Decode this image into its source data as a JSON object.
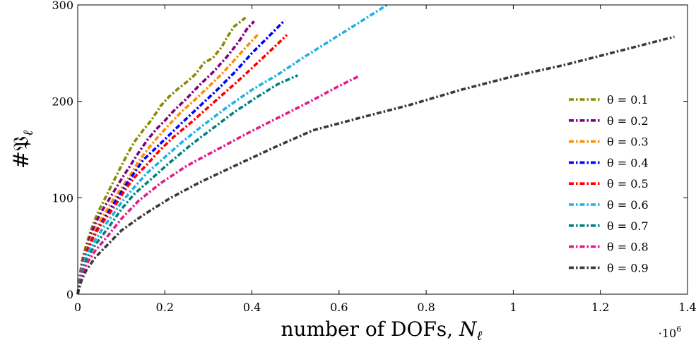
{
  "chart_data": {
    "type": "line",
    "xlabel": "number of DOFs, N_ℓ",
    "ylabel": "#𝔓_ℓ",
    "x_scale_label": "·10^6",
    "xlim": [
      0,
      1.4
    ],
    "ylim": [
      0,
      300
    ],
    "x_ticks": [
      "0",
      "0.2",
      "0.4",
      "0.6",
      "0.8",
      "1",
      "1.2",
      "1.4"
    ],
    "y_ticks": [
      "0",
      "100",
      "200",
      "300"
    ],
    "x_tick_values": [
      0,
      0.2,
      0.4,
      0.6,
      0.8,
      1.0,
      1.2,
      1.4
    ],
    "y_tick_values": [
      0,
      100,
      200,
      300
    ],
    "legend_position": "right",
    "grid": false,
    "series": [
      {
        "name": "θ = 0.1",
        "color": "#8a8a00",
        "x": [
          0,
          0.005,
          0.01,
          0.02,
          0.03,
          0.04,
          0.05,
          0.06,
          0.07,
          0.08,
          0.09,
          0.1,
          0.115,
          0.13,
          0.15,
          0.17,
          0.19,
          0.21,
          0.23,
          0.25,
          0.27,
          0.29,
          0.31,
          0.33,
          0.345,
          0.36,
          0.375,
          0.385
        ],
        "y": [
          0,
          20,
          35,
          52,
          66,
          78,
          88,
          97,
          106,
          115,
          124,
          133,
          146,
          158,
          170,
          181,
          195,
          205,
          213,
          220,
          228,
          240,
          245,
          256,
          268,
          278,
          283,
          287
        ]
      },
      {
        "name": "θ = 0.2",
        "color": "#800080",
        "x": [
          0,
          0.005,
          0.01,
          0.02,
          0.03,
          0.04,
          0.055,
          0.07,
          0.085,
          0.1,
          0.12,
          0.14,
          0.16,
          0.18,
          0.2,
          0.22,
          0.25,
          0.28,
          0.31,
          0.34,
          0.37,
          0.39,
          0.405
        ],
        "y": [
          0,
          18,
          32,
          48,
          62,
          73,
          86,
          97,
          108,
          119,
          133,
          147,
          160,
          171,
          180,
          190,
          203,
          217,
          230,
          245,
          262,
          276,
          283
        ]
      },
      {
        "name": "θ = 0.3",
        "color": "#ff8c00",
        "x": [
          0,
          0.005,
          0.01,
          0.02,
          0.035,
          0.05,
          0.065,
          0.08,
          0.1,
          0.12,
          0.14,
          0.16,
          0.18,
          0.21,
          0.24,
          0.27,
          0.3,
          0.33,
          0.36,
          0.39,
          0.415
        ],
        "y": [
          0,
          17,
          30,
          46,
          62,
          75,
          86,
          97,
          110,
          123,
          138,
          150,
          161,
          176,
          190,
          202,
          215,
          228,
          243,
          258,
          270
        ]
      },
      {
        "name": "θ = 0.4",
        "color": "#0000ff",
        "x": [
          0,
          0.005,
          0.01,
          0.02,
          0.035,
          0.05,
          0.07,
          0.09,
          0.11,
          0.13,
          0.15,
          0.18,
          0.21,
          0.24,
          0.28,
          0.32,
          0.36,
          0.4,
          0.44,
          0.475
        ],
        "y": [
          0,
          16,
          29,
          44,
          59,
          71,
          85,
          99,
          113,
          126,
          139,
          152,
          165,
          178,
          195,
          212,
          230,
          250,
          268,
          284
        ]
      },
      {
        "name": "θ = 0.5",
        "color": "#ff0000",
        "x": [
          0,
          0.005,
          0.01,
          0.02,
          0.035,
          0.05,
          0.07,
          0.09,
          0.11,
          0.13,
          0.16,
          0.19,
          0.22,
          0.26,
          0.3,
          0.34,
          0.38,
          0.42,
          0.46,
          0.48
        ],
        "y": [
          0,
          16,
          28,
          43,
          58,
          70,
          82,
          95,
          109,
          121,
          135,
          150,
          163,
          178,
          194,
          210,
          226,
          243,
          260,
          269
        ]
      },
      {
        "name": "θ = 0.6",
        "color": "#1fb0e6",
        "x": [
          0,
          0.005,
          0.01,
          0.02,
          0.04,
          0.06,
          0.08,
          0.1,
          0.13,
          0.16,
          0.2,
          0.24,
          0.29,
          0.34,
          0.4,
          0.46,
          0.52,
          0.58,
          0.64,
          0.71
        ],
        "y": [
          0,
          15,
          26,
          40,
          56,
          70,
          82,
          95,
          111,
          126,
          142,
          158,
          176,
          193,
          212,
          228,
          246,
          263,
          280,
          300
        ]
      },
      {
        "name": "θ = 0.7",
        "color": "#008080",
        "x": [
          0,
          0.005,
          0.01,
          0.02,
          0.04,
          0.06,
          0.08,
          0.1,
          0.13,
          0.17,
          0.21,
          0.26,
          0.31,
          0.36,
          0.41,
          0.46,
          0.505
        ],
        "y": [
          0,
          13,
          23,
          36,
          51,
          63,
          75,
          88,
          104,
          120,
          136,
          155,
          172,
          189,
          204,
          218,
          227
        ]
      },
      {
        "name": "θ = 0.8",
        "color": "#e6198a",
        "x": [
          0,
          0.005,
          0.01,
          0.02,
          0.04,
          0.07,
          0.1,
          0.14,
          0.19,
          0.25,
          0.32,
          0.39,
          0.46,
          0.53,
          0.6,
          0.645
        ],
        "y": [
          0,
          11,
          20,
          31,
          45,
          61,
          78,
          97,
          115,
          133,
          150,
          167,
          183,
          199,
          216,
          226
        ]
      },
      {
        "name": "θ = 0.9",
        "color": "#3a3a3a",
        "x": [
          0,
          0.005,
          0.01,
          0.02,
          0.04,
          0.07,
          0.1,
          0.15,
          0.21,
          0.28,
          0.36,
          0.45,
          0.54,
          0.64,
          0.76,
          0.88,
          1.0,
          1.12,
          1.25,
          1.37
        ],
        "y": [
          0,
          9,
          16,
          25,
          38,
          52,
          66,
          82,
          99,
          116,
          133,
          152,
          170,
          182,
          196,
          212,
          226,
          238,
          253,
          267
        ]
      }
    ]
  }
}
